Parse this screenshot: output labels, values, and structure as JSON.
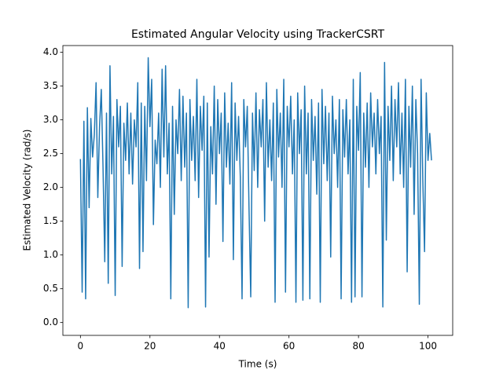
{
  "chart_data": {
    "type": "line",
    "title": "Estimated Angular Velocity using TrackerCSRT",
    "xlabel": "Time (s)",
    "ylabel": "Estimated Velocity (rad/s)",
    "xlim": [
      -5.05,
      107.1
    ],
    "ylim": [
      -0.19,
      4.1
    ],
    "xticks": [
      0,
      20,
      40,
      60,
      80,
      100
    ],
    "yticks": [
      {
        "value": 0,
        "label": "0.0"
      },
      {
        "value": 0.5,
        "label": "0.5"
      },
      {
        "value": 1,
        "label": "1.0"
      },
      {
        "value": 1.5,
        "label": "1.5"
      },
      {
        "value": 2,
        "label": "2.0"
      },
      {
        "value": 2.5,
        "label": "2.5"
      },
      {
        "value": 3,
        "label": "3.0"
      },
      {
        "value": 3.5,
        "label": "3.5"
      },
      {
        "value": 4,
        "label": "4.0"
      }
    ],
    "x": [
      0,
      0.5,
      1,
      1.5,
      2,
      2.5,
      3,
      3.5,
      4,
      4.5,
      5,
      5.5,
      6,
      6.5,
      7,
      7.5,
      8,
      8.5,
      9,
      9.5,
      10,
      10.5,
      11,
      11.5,
      12,
      12.5,
      13,
      13.5,
      14,
      14.5,
      15,
      15.5,
      16,
      16.5,
      17,
      17.5,
      18,
      18.5,
      19,
      19.5,
      20,
      20.5,
      21,
      21.5,
      22,
      22.5,
      23,
      23.5,
      24,
      24.5,
      25,
      25.5,
      26,
      26.5,
      27,
      27.5,
      28,
      28.5,
      29,
      29.5,
      30,
      30.5,
      31,
      31.5,
      32,
      32.5,
      33,
      33.5,
      34,
      34.5,
      35,
      35.5,
      36,
      36.5,
      37,
      37.5,
      38,
      38.5,
      39,
      39.5,
      40,
      40.5,
      41,
      41.5,
      42,
      42.5,
      43,
      43.5,
      44,
      44.5,
      45,
      45.5,
      46,
      46.5,
      47,
      47.5,
      48,
      48.5,
      49,
      49.5,
      50,
      50.5,
      51,
      51.5,
      52,
      52.5,
      53,
      53.5,
      54,
      54.5,
      55,
      55.5,
      56,
      56.5,
      57,
      57.5,
      58,
      58.5,
      59,
      59.5,
      60,
      60.5,
      61,
      61.5,
      62,
      62.5,
      63,
      63.5,
      64,
      64.5,
      65,
      65.5,
      66,
      66.5,
      67,
      67.5,
      68,
      68.5,
      69,
      69.5,
      70,
      70.5,
      71,
      71.5,
      72,
      72.5,
      73,
      73.5,
      74,
      74.5,
      75,
      75.5,
      76,
      76.5,
      77,
      77.5,
      78,
      78.5,
      79,
      79.5,
      80,
      80.5,
      81,
      81.5,
      82,
      82.5,
      83,
      83.5,
      84,
      84.5,
      85,
      85.5,
      86,
      86.5,
      87,
      87.5,
      88,
      88.5,
      89,
      89.5,
      90,
      90.5,
      91,
      91.5,
      92,
      92.5,
      93,
      93.5,
      94,
      94.5,
      95,
      95.5,
      96,
      96.5,
      97,
      97.5,
      98,
      98.5,
      99,
      99.5,
      100,
      100.5,
      101
    ],
    "series": [
      {
        "color": "#1f77b4",
        "values": [
          2.42,
          0.45,
          2.98,
          0.35,
          3.18,
          1.7,
          3.02,
          2.45,
          2.78,
          3.55,
          1.85,
          2.9,
          3.45,
          2.3,
          0.9,
          3.1,
          0.58,
          3.8,
          2.2,
          3.05,
          0.4,
          3.3,
          2.6,
          3.2,
          0.83,
          2.95,
          2.4,
          3.25,
          2.2,
          3.1,
          2.05,
          3.0,
          2.6,
          3.55,
          0.8,
          3.25,
          1.05,
          3.2,
          2.1,
          3.92,
          2.9,
          3.6,
          1.45,
          2.7,
          2.35,
          3.1,
          2.0,
          3.75,
          2.45,
          3.8,
          2.2,
          2.95,
          0.35,
          3.2,
          1.6,
          3.0,
          2.5,
          3.45,
          2.1,
          3.35,
          2.3,
          3.1,
          0.22,
          3.3,
          2.4,
          3.05,
          2.1,
          3.6,
          1.85,
          3.2,
          2.55,
          3.35,
          0.23,
          3.25,
          0.97,
          2.9,
          2.2,
          3.5,
          1.75,
          3.3,
          2.5,
          3.1,
          1.2,
          3.4,
          2.3,
          2.95,
          2.05,
          3.55,
          0.93,
          3.25,
          2.4,
          3.05,
          2.15,
          0.35,
          3.3,
          2.6,
          3.2,
          1.7,
          0.38,
          3.1,
          2.25,
          3.4,
          2.0,
          3.15,
          2.6,
          3.3,
          1.5,
          3.55,
          2.3,
          3.0,
          2.1,
          3.25,
          0.3,
          3.45,
          2.45,
          3.1,
          2.0,
          3.6,
          0.45,
          3.2,
          2.6,
          3.35,
          2.2,
          3.0,
          0.3,
          3.4,
          2.5,
          3.15,
          0.33,
          3.5,
          2.2,
          3.1,
          0.35,
          3.3,
          2.4,
          3.05,
          1.9,
          3.25,
          0.3,
          3.45,
          2.35,
          3.2,
          2.1,
          3.1,
          0.97,
          3.35,
          2.5,
          3.0,
          2.0,
          3.3,
          0.35,
          3.15,
          2.45,
          3.3,
          2.2,
          3.0,
          0.3,
          3.6,
          0.38,
          3.2,
          2.55,
          3.7,
          0.38,
          3.1,
          2.3,
          3.25,
          2.0,
          3.4,
          2.6,
          3.1,
          2.2,
          3.3,
          2.5,
          3.05,
          0.23,
          3.85,
          1.22,
          3.2,
          2.4,
          3.5,
          2.1,
          3.3,
          2.6,
          3.55,
          2.2,
          3.1,
          2.0,
          3.6,
          0.75,
          3.2,
          2.3,
          3.5,
          1.6,
          3.3,
          2.5,
          0.27,
          3.6,
          2.1,
          1.05,
          3.4,
          2.4,
          2.8,
          2.4
        ]
      }
    ]
  }
}
